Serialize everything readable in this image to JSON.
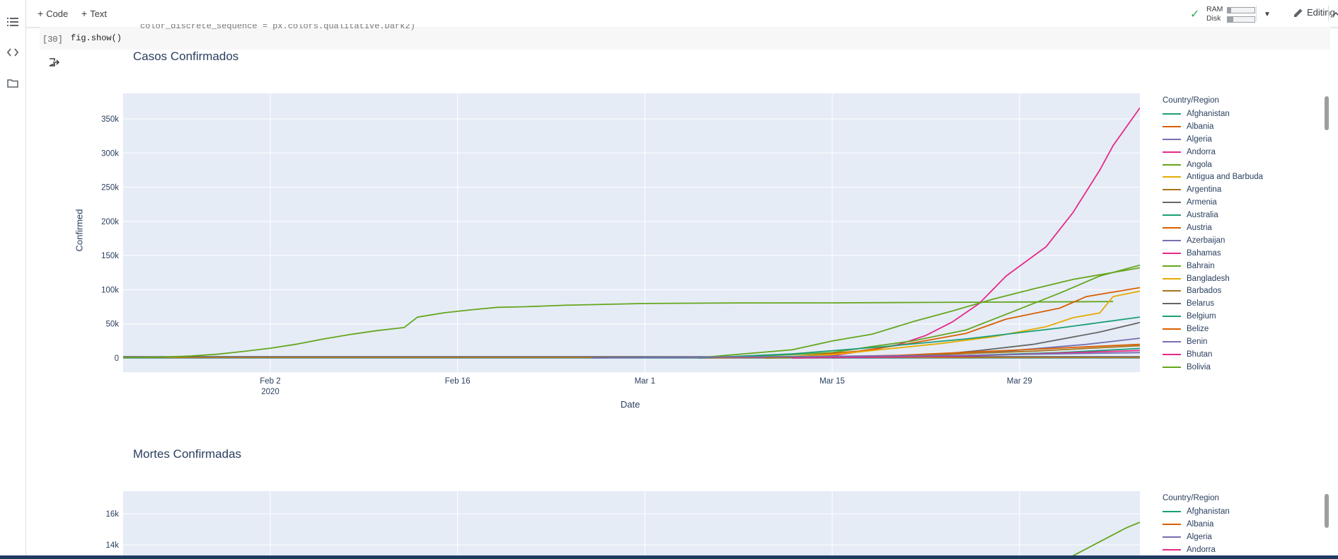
{
  "toolbar": {
    "add_code": "Code",
    "add_text": "Text",
    "ram_label": "RAM",
    "disk_label": "Disk",
    "ram_fill": 0.12,
    "disk_fill": 0.2,
    "editing_label": "Editing"
  },
  "left_rail": {
    "icons": [
      "toc-icon",
      "code-snippets-icon",
      "folder-icon"
    ]
  },
  "cell": {
    "execution_count": "[30]",
    "code": "fig.show()",
    "partial_previous_line": "color_discrete_sequence = px.colors.qualitative.Dark2)"
  },
  "chart_data": [
    {
      "type": "line",
      "title": "Casos Confirmados",
      "xlabel": "Date",
      "ylabel": "Confirmed",
      "x_ticks": [
        "Feb 2",
        "Feb 16",
        "Mar 1",
        "Mar 15",
        "Mar 29"
      ],
      "x_tick_year": "2020",
      "x_range": [
        "2020-01-22",
        "2020-04-05"
      ],
      "y_ticks": [
        "0",
        "50k",
        "100k",
        "150k",
        "200k",
        "250k",
        "300k",
        "350k"
      ],
      "ylim": [
        -20000,
        388000
      ],
      "legend_title": "Country/Region",
      "legend_position": "right",
      "legend": [
        {
          "name": "Afghanistan",
          "color": "#1b9e77"
        },
        {
          "name": "Albania",
          "color": "#d95f02"
        },
        {
          "name": "Algeria",
          "color": "#7570b3"
        },
        {
          "name": "Andorra",
          "color": "#e7298a"
        },
        {
          "name": "Angola",
          "color": "#66a61e"
        },
        {
          "name": "Antigua and Barbuda",
          "color": "#e6ab02"
        },
        {
          "name": "Argentina",
          "color": "#a6761d"
        },
        {
          "name": "Armenia",
          "color": "#666666"
        },
        {
          "name": "Australia",
          "color": "#1b9e77"
        },
        {
          "name": "Austria",
          "color": "#d95f02"
        },
        {
          "name": "Azerbaijan",
          "color": "#7570b3"
        },
        {
          "name": "Bahamas",
          "color": "#e7298a"
        },
        {
          "name": "Bahrain",
          "color": "#66a61e"
        },
        {
          "name": "Bangladesh",
          "color": "#e6ab02"
        },
        {
          "name": "Barbados",
          "color": "#a6761d"
        },
        {
          "name": "Belarus",
          "color": "#666666"
        },
        {
          "name": "Belgium",
          "color": "#1b9e77"
        },
        {
          "name": "Belize",
          "color": "#d95f02"
        },
        {
          "name": "Benin",
          "color": "#7570b3"
        },
        {
          "name": "Bhutan",
          "color": "#e7298a"
        },
        {
          "name": "Bolivia",
          "color": "#66a61e"
        }
      ],
      "series": [
        {
          "color": "#66a61e",
          "points": [
            [
              "2020-01-22",
              548
            ],
            [
              "2020-01-25",
              1400
            ],
            [
              "2020-01-27",
              2900
            ],
            [
              "2020-01-29",
              5500
            ],
            [
              "2020-01-31",
              9700
            ],
            [
              "2020-02-02",
              14400
            ],
            [
              "2020-02-04",
              20400
            ],
            [
              "2020-02-06",
              28000
            ],
            [
              "2020-02-08",
              34600
            ],
            [
              "2020-02-10",
              40200
            ],
            [
              "2020-02-12",
              44600
            ],
            [
              "2020-02-13",
              59900
            ],
            [
              "2020-02-15",
              66300
            ],
            [
              "2020-02-17",
              70500
            ],
            [
              "2020-02-19",
              74200
            ],
            [
              "2020-02-21",
              75100
            ],
            [
              "2020-02-24",
              77200
            ],
            [
              "2020-03-01",
              79800
            ],
            [
              "2020-03-08",
              80700
            ],
            [
              "2020-03-15",
              80800
            ],
            [
              "2020-03-22",
              81400
            ],
            [
              "2020-03-29",
              82000
            ],
            [
              "2020-04-05",
              82600
            ]
          ]
        },
        {
          "color": "#e7298a",
          "points": [
            [
              "2020-03-05",
              200
            ],
            [
              "2020-03-10",
              1000
            ],
            [
              "2020-03-15",
              3500
            ],
            [
              "2020-03-18",
              12000
            ],
            [
              "2020-03-20",
              20000
            ],
            [
              "2020-03-22",
              33000
            ],
            [
              "2020-03-24",
              53000
            ],
            [
              "2020-03-26",
              80000
            ],
            [
              "2020-03-28",
              120000
            ],
            [
              "2020-03-31",
              163000
            ],
            [
              "2020-04-02",
              213000
            ],
            [
              "2020-04-04",
              275000
            ],
            [
              "2020-04-05",
              311000
            ],
            [
              "2020-04-07",
              366000
            ]
          ]
        },
        {
          "color": "#66a61e",
          "points": [
            [
              "2020-03-05",
              500
            ],
            [
              "2020-03-12",
              12000
            ],
            [
              "2020-03-15",
              25000
            ],
            [
              "2020-03-18",
              35000
            ],
            [
              "2020-03-21",
              53000
            ],
            [
              "2020-03-24",
              69000
            ],
            [
              "2020-03-27",
              86000
            ],
            [
              "2020-03-30",
              101000
            ],
            [
              "2020-04-02",
              115000
            ],
            [
              "2020-04-07",
              132000
            ]
          ]
        },
        {
          "color": "#66a61e",
          "points": [
            [
              "2020-03-05",
              300
            ],
            [
              "2020-03-12",
              5000
            ],
            [
              "2020-03-15",
              8000
            ],
            [
              "2020-03-18",
              17000
            ],
            [
              "2020-03-21",
              25000
            ],
            [
              "2020-03-25",
              41000
            ],
            [
              "2020-03-28",
              64000
            ],
            [
              "2020-04-01",
              95000
            ],
            [
              "2020-04-04",
              120000
            ],
            [
              "2020-04-07",
              136000
            ]
          ]
        },
        {
          "color": "#d95f02",
          "points": [
            [
              "2020-03-05",
              100
            ],
            [
              "2020-03-12",
              2000
            ],
            [
              "2020-03-17",
              10000
            ],
            [
              "2020-03-21",
              22000
            ],
            [
              "2020-03-25",
              36000
            ],
            [
              "2020-03-28",
              57000
            ],
            [
              "2020-04-01",
              73000
            ],
            [
              "2020-04-03",
              90000
            ],
            [
              "2020-04-07",
              103000
            ]
          ]
        },
        {
          "color": "#e6ab02",
          "points": [
            [
              "2020-03-10",
              500
            ],
            [
              "2020-03-15",
              5000
            ],
            [
              "2020-03-19",
              13000
            ],
            [
              "2020-03-23",
              21000
            ],
            [
              "2020-03-27",
              31000
            ],
            [
              "2020-03-31",
              46000
            ],
            [
              "2020-04-02",
              59000
            ],
            [
              "2020-04-04",
              66000
            ],
            [
              "2020-04-05",
              90000
            ],
            [
              "2020-04-07",
              98000
            ]
          ]
        },
        {
          "color": "#1b9e77",
          "points": [
            [
              "2020-03-05",
              100
            ],
            [
              "2020-03-12",
              6000
            ],
            [
              "2020-03-19",
              17000
            ],
            [
              "2020-03-25",
              28000
            ],
            [
              "2020-04-01",
              44000
            ],
            [
              "2020-04-07",
              60000
            ]
          ]
        },
        {
          "color": "#666666",
          "points": [
            [
              "2020-03-15",
              100
            ],
            [
              "2020-03-22",
              3500
            ],
            [
              "2020-03-26",
              11000
            ],
            [
              "2020-03-30",
              20000
            ],
            [
              "2020-04-04",
              38000
            ],
            [
              "2020-04-07",
              52000
            ]
          ]
        },
        {
          "color": "#7570b3",
          "points": [
            [
              "2020-03-10",
              100
            ],
            [
              "2020-03-20",
              3000
            ],
            [
              "2020-03-28",
              10000
            ],
            [
              "2020-04-03",
              20000
            ],
            [
              "2020-04-07",
              29000
            ]
          ]
        },
        {
          "color": "#d95f02",
          "points": [
            [
              "2020-03-10",
              100
            ],
            [
              "2020-03-20",
              4000
            ],
            [
              "2020-03-28",
              11000
            ],
            [
              "2020-04-07",
              20000
            ]
          ]
        },
        {
          "color": "#a6761d",
          "points": [
            [
              "2020-03-10",
              100
            ],
            [
              "2020-03-20",
              3000
            ],
            [
              "2020-03-30",
              10000
            ],
            [
              "2020-04-07",
              18000
            ]
          ]
        },
        {
          "color": "#1b9e77",
          "points": [
            [
              "2020-03-12",
              100
            ],
            [
              "2020-03-22",
              2000
            ],
            [
              "2020-04-01",
              8000
            ],
            [
              "2020-04-07",
              14000
            ]
          ]
        },
        {
          "color": "#e7298a",
          "points": [
            [
              "2020-03-12",
              100
            ],
            [
              "2020-03-25",
              3000
            ],
            [
              "2020-04-07",
              11000
            ]
          ]
        },
        {
          "color": "#7570b3",
          "points": [
            [
              "2020-02-26",
              100
            ],
            [
              "2020-03-10",
              2000
            ],
            [
              "2020-03-25",
              4000
            ],
            [
              "2020-04-07",
              8000
            ]
          ]
        }
      ]
    },
    {
      "type": "line",
      "title": "Mortes Confirmadas",
      "y_ticks": [
        "14k",
        "16k"
      ],
      "legend_title": "Country/Region",
      "legend_position": "right",
      "legend": [
        {
          "name": "Afghanistan",
          "color": "#1b9e77"
        },
        {
          "name": "Albania",
          "color": "#d95f02"
        },
        {
          "name": "Algeria",
          "color": "#7570b3"
        },
        {
          "name": "Andorra",
          "color": "#e7298a"
        }
      ],
      "series": [
        {
          "color": "#66a61e",
          "points": [
            [
              "2020-03-31",
              12400
            ],
            [
              "2020-04-02",
              13300
            ],
            [
              "2020-04-04",
              14200
            ],
            [
              "2020-04-06",
              15100
            ],
            [
              "2020-04-08",
              15800
            ],
            [
              "2020-04-10",
              16500
            ]
          ]
        }
      ]
    }
  ]
}
